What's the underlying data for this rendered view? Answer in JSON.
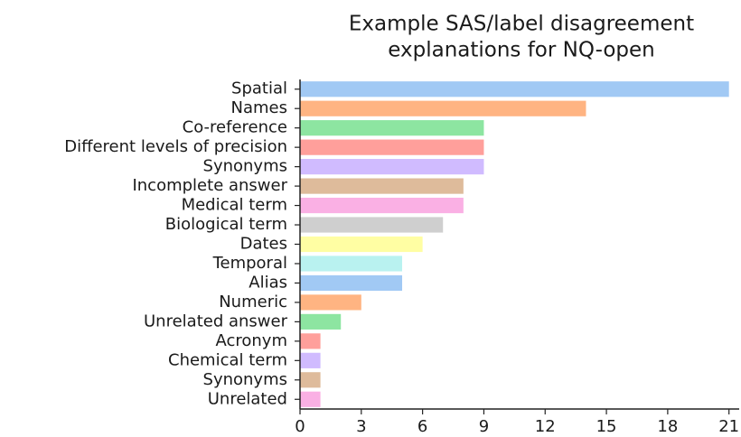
{
  "chart_data": {
    "type": "barh",
    "title": [
      "Example SAS/label disagreement",
      "explanations for NQ-open"
    ],
    "categories": [
      "Spatial",
      "Names",
      "Co-reference",
      "Different levels of precision",
      "Synonyms ",
      "Incomplete answer",
      "Medical term",
      "Biological term",
      "Dates",
      "Temporal",
      "Alias",
      "Numeric",
      "Unrelated answer",
      "Acronym",
      "Chemical term",
      "Synonyms",
      "Unrelated"
    ],
    "values": [
      21,
      14,
      9,
      9,
      9,
      8,
      8,
      7,
      6,
      5,
      5,
      3,
      2,
      1,
      1,
      1,
      1
    ],
    "colors": [
      "#a1c9f4",
      "#ffb482",
      "#8de5a1",
      "#ff9f9b",
      "#d0bbff",
      "#debb9b",
      "#fab0e4",
      "#cfcfcf",
      "#fffea3",
      "#b9f2f0",
      "#a1c9f4",
      "#ffb482",
      "#8de5a1",
      "#ff9f9b",
      "#d0bbff",
      "#debb9b",
      "#fab0e4"
    ],
    "xlim": [
      0,
      21.5
    ],
    "xticks": [
      0,
      3,
      6,
      9,
      12,
      15,
      18,
      21
    ]
  }
}
